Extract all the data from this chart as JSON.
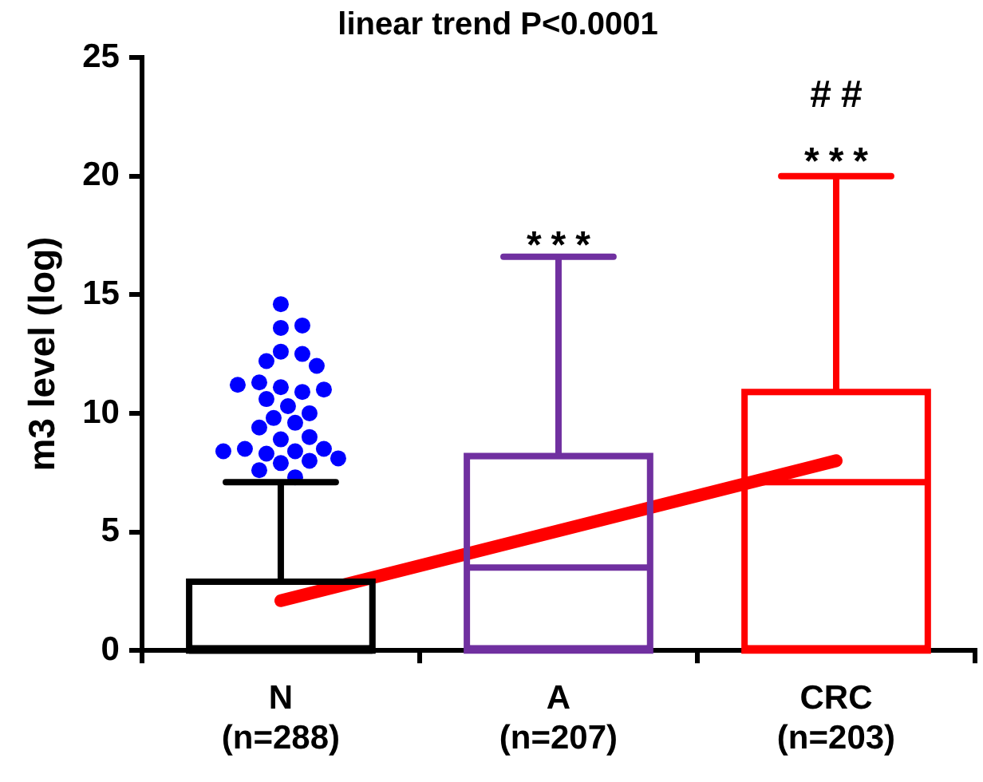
{
  "chart_data": {
    "type": "box",
    "title": "linear trend P<0.0001",
    "ylabel": "m3 level (log)",
    "categories": [
      "N\n(n=288)",
      "A\n(n=207)",
      "CRC\n(n=203)"
    ],
    "ylim": [
      0,
      25
    ],
    "yticks": [
      0,
      5,
      10,
      15,
      20,
      25
    ],
    "grid": false,
    "legend": false,
    "series": [
      {
        "type": "box",
        "colors": [
          "#000000",
          "#7030a0",
          "#ff0000"
        ],
        "boxes": [
          {
            "low": 0,
            "q1": 0,
            "median": 0,
            "q3": 2.9,
            "high": 7.1
          },
          {
            "low": 0,
            "q1": 0,
            "median": 3.5,
            "q3": 8.2,
            "high": 16.6
          },
          {
            "low": 0,
            "q1": 0,
            "median": 7.1,
            "q3": 10.9,
            "high": 20.0
          }
        ]
      },
      {
        "type": "scatter",
        "color": "#0000ff",
        "x": [
          "N\n(n=288)",
          "N\n(n=288)",
          "N\n(n=288)",
          "N\n(n=288)",
          "N\n(n=288)",
          "N\n(n=288)",
          "N\n(n=288)",
          "N\n(n=288)",
          "N\n(n=288)",
          "N\n(n=288)",
          "N\n(n=288)",
          "N\n(n=288)",
          "N\n(n=288)",
          "N\n(n=288)",
          "N\n(n=288)",
          "N\n(n=288)",
          "N\n(n=288)",
          "N\n(n=288)",
          "N\n(n=288)",
          "N\n(n=288)",
          "N\n(n=288)",
          "N\n(n=288)",
          "N\n(n=288)",
          "N\n(n=288)",
          "N\n(n=288)",
          "N\n(n=288)",
          "N\n(n=288)",
          "N\n(n=288)",
          "N\n(n=288)",
          "N\n(n=288)"
        ],
        "values": [
          14.6,
          13.6,
          13.7,
          12.6,
          12.5,
          12.2,
          12.0,
          11.1,
          10.9,
          11.3,
          11.0,
          11.2,
          10.6,
          10.3,
          10.0,
          9.8,
          9.6,
          9.4,
          8.9,
          9.0,
          8.4,
          8.3,
          8.5,
          8.5,
          8.4,
          8.0,
          8.1,
          7.9,
          7.6,
          7.3
        ]
      },
      {
        "type": "line",
        "x": [
          "N\n(n=288)",
          "CRC\n(n=203)"
        ],
        "values": [
          2.1,
          8.0
        ],
        "color": "#ff0000"
      }
    ],
    "annotations": [
      "***",
      "***",
      "##"
    ]
  }
}
